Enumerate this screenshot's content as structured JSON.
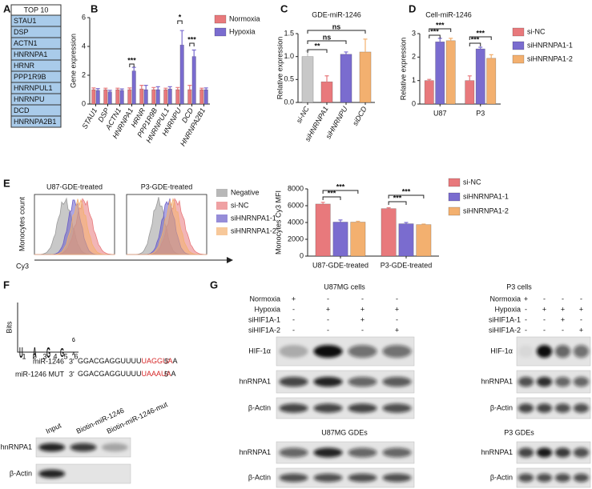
{
  "panel_labels": [
    "A",
    "B",
    "C",
    "D",
    "E",
    "F",
    "G"
  ],
  "panel_a": {
    "header": "TOP 10",
    "items": [
      "STAU1",
      "DSP",
      "ACTN1",
      "HNRNPA1",
      "HRNR",
      "PPP1R9B",
      "HNRNPUL1",
      "HNRNPU",
      "DCD",
      "HNRNPA2B1"
    ]
  },
  "chart_data": [
    {
      "type": "bar",
      "y_label": "Gene expression",
      "categories": [
        "STAU1",
        "DSP",
        "ACTN1",
        "HNRNPA1",
        "HRNR",
        "PPP1R9B",
        "HNRNPUL1",
        "HNRNPU",
        "DCD",
        "HNRNPA2B1"
      ],
      "series": [
        {
          "name": "Normoxia",
          "color": "#e8797c",
          "values": [
            1,
            1,
            1,
            1,
            1.05,
            1,
            1,
            1,
            1,
            1
          ],
          "errors": [
            0.12,
            0.1,
            0.1,
            0.12,
            0.25,
            0.15,
            0.1,
            0.15,
            0.3,
            0.1
          ]
        },
        {
          "name": "Hypoxia",
          "color": "#7a6ccf",
          "values": [
            0.95,
            0.85,
            0.95,
            2.3,
            1.0,
            1.0,
            1.05,
            4.1,
            3.3,
            1.0
          ],
          "errors": [
            0.12,
            0.1,
            0.1,
            0.25,
            0.3,
            0.2,
            0.15,
            1.0,
            0.45,
            0.12
          ]
        }
      ],
      "ylim": [
        0,
        6
      ],
      "yticks": [
        0,
        2,
        4,
        6
      ],
      "legend": "right",
      "annotations": [
        "***",
        "*",
        "***"
      ]
    },
    {
      "type": "bar",
      "title": "GDE-miR-1246",
      "y_label": "Relative expression",
      "categories": [
        "si-NC",
        "siHNRNPA1",
        "siHNRNPU",
        "siDCD"
      ],
      "values": [
        1.0,
        0.45,
        1.05,
        1.1
      ],
      "errors": [
        0.12,
        0.13,
        0.05,
        0.28
      ],
      "colors": [
        "#c8c8c8",
        "#e8797c",
        "#7a6ccf",
        "#f3b06f"
      ],
      "ylim": [
        0,
        1.5
      ],
      "yticks": [
        {
          "value": 0,
          "label": "0.0"
        },
        0.5,
        {
          "value": 1,
          "label": "1.0"
        },
        1.5
      ],
      "annotations": [
        "**",
        "ns",
        "ns"
      ]
    },
    {
      "type": "bar",
      "title": "Cell-miR-1246",
      "y_label": "Relative expression",
      "categories": [
        "U87",
        "P3"
      ],
      "series": [
        {
          "name": "si-NC",
          "color": "#e8797c",
          "values": [
            1.0,
            1.0
          ],
          "errors": [
            0.05,
            0.2
          ]
        },
        {
          "name": "siHNRNPA1-1",
          "color": "#7a6ccf",
          "values": [
            2.65,
            2.35
          ],
          "errors": [
            0.15,
            0.07
          ]
        },
        {
          "name": "siHNRNPA1-2",
          "color": "#f3b06f",
          "values": [
            2.7,
            1.95
          ],
          "errors": [
            0.1,
            0.15
          ]
        }
      ],
      "ylim": [
        0,
        3
      ],
      "yticks": [
        0,
        1,
        2,
        3
      ],
      "legend": "right",
      "annotations": [
        "***",
        "***",
        "***",
        "***"
      ]
    },
    {
      "type": "bar",
      "y_label": "Monocytes Cy3 MFI",
      "categories": [
        "U87-GDE-treated",
        "P3-GDE-treated"
      ],
      "series": [
        {
          "name": "si-NC",
          "color": "#e8797c",
          "values": [
            6200,
            5650
          ],
          "errors": [
            200,
            100
          ]
        },
        {
          "name": "siHNRNPA1-1",
          "color": "#7a6ccf",
          "values": [
            4050,
            3850
          ],
          "errors": [
            250,
            150
          ]
        },
        {
          "name": "siHNRNPA1-2",
          "color": "#f3b06f",
          "values": [
            4050,
            3750
          ],
          "errors": [
            100,
            60
          ]
        }
      ],
      "ylim": [
        0,
        8000
      ],
      "yticks": [
        0,
        2000,
        4000,
        6000,
        8000
      ],
      "legend": "right",
      "annotations": [
        "***",
        "***",
        "***",
        "***"
      ]
    }
  ],
  "panel_e": {
    "histogram_titles": [
      "U87-GDE-treated",
      "P3-GDE-treated"
    ],
    "y_label": "Monocytes count",
    "x_label": "Cy3",
    "legend": [
      "Negative",
      "si-NC",
      "siHNRNPA1-1",
      "siHNRNPA1-2"
    ]
  },
  "panel_f": {
    "logo_axis": "Bits",
    "logo_letters": [
      "U",
      "A",
      "G",
      "G",
      "G",
      "A"
    ],
    "logo_positions": [
      1,
      2,
      3,
      4,
      5,
      6
    ],
    "sequences": [
      {
        "name": "miR-1246",
        "end_3": "3'",
        "parts": [
          "GGACGAGGUUUU",
          "UAGGUA",
          "A"
        ],
        "end_5": "5'"
      },
      {
        "name": "miR-1246 MUT",
        "end_3": "3'",
        "parts": [
          "GGACGAGGUUUU",
          "UAAAUA",
          "A"
        ],
        "end_5": "5'"
      }
    ],
    "lanes": [
      "Input",
      "Biotin-miR-1246",
      "Biotin-miR-1246-mut"
    ],
    "bands": [
      "hnRNPA1",
      "β-Actin"
    ]
  },
  "panel_g": [
    {
      "title": "U87MG cells",
      "conditions": [
        {
          "label": "Normoxia",
          "signs": [
            "+",
            "-",
            "-",
            "-"
          ]
        },
        {
          "label": "Hypoxia",
          "signs": [
            "-",
            "+",
            "+",
            "+"
          ]
        },
        {
          "label": "siHIF1A-1",
          "signs": [
            "-",
            "-",
            "+",
            "-"
          ]
        },
        {
          "label": "siHIF1A-2",
          "signs": [
            "-",
            "-",
            "-",
            "+"
          ]
        }
      ],
      "bands": [
        "HIF-1α",
        "hnRNPA1",
        "β-Actin"
      ],
      "gde_title": "U87MG GDEs",
      "gde_bands": [
        "hnRNPA1",
        "β-Actin"
      ]
    },
    {
      "title": "P3 cells",
      "conditions": [
        {
          "label": "Normoxia",
          "signs": [
            "+",
            "-",
            "-",
            "-"
          ]
        },
        {
          "label": "Hypoxia",
          "signs": [
            "-",
            "+",
            "+",
            "+"
          ]
        },
        {
          "label": "siHIF1A-1",
          "signs": [
            "-",
            "-",
            "+",
            "-"
          ]
        },
        {
          "label": "siHIF1A-2",
          "signs": [
            "-",
            "-",
            "-",
            "+"
          ]
        }
      ],
      "bands": [
        "HIF-1α",
        "hnRNPA1",
        "β-Actin"
      ],
      "gde_title": "P3 GDEs",
      "gde_bands": [
        "hnRNPA1",
        "β-Actin"
      ]
    }
  ]
}
